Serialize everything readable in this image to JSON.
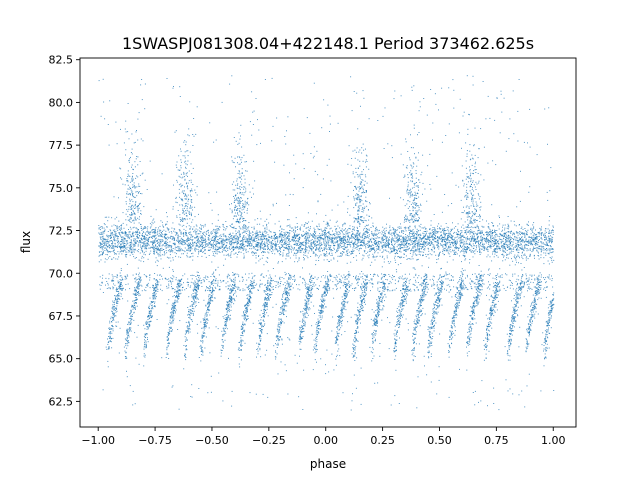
{
  "chart_data": {
    "type": "scatter",
    "title": "1SWASPJ081308.04+422148.1 Period 373462.625s",
    "xlabel": "phase",
    "ylabel": "flux",
    "xlim": [
      -1.08,
      1.1
    ],
    "ylim": [
      61.0,
      82.6
    ],
    "x_ticks": [
      -1.0,
      -0.75,
      -0.5,
      -0.25,
      0.0,
      0.25,
      0.5,
      0.75,
      1.0
    ],
    "x_tick_labels": [
      "−1.00",
      "−0.75",
      "−0.50",
      "−0.25",
      "0.00",
      "0.25",
      "0.50",
      "0.75",
      "1.00"
    ],
    "y_ticks": [
      62.5,
      65.0,
      67.5,
      70.0,
      72.5,
      75.0,
      77.5,
      80.0,
      82.5
    ],
    "y_tick_labels": [
      "62.5",
      "65.0",
      "67.5",
      "70.0",
      "72.5",
      "75.0",
      "77.5",
      "80.0",
      "82.5"
    ],
    "grid": false,
    "legend": "none",
    "point_color": "#1f77b4",
    "series": [
      {
        "points_summary": {
          "x_range": [
            -1.0,
            1.0
          ],
          "dense_band_flux": [
            70.8,
            73.0
          ],
          "band_center_flux": 71.9,
          "secondary_band_flux": [
            69.0,
            70.0
          ],
          "dip_streak_phases": [
            -0.96,
            -0.88,
            -0.8,
            -0.7,
            -0.62,
            -0.55,
            -0.46,
            -0.38,
            -0.3,
            -0.22,
            -0.12,
            -0.05,
            0.04,
            0.12,
            0.2,
            0.3,
            0.38,
            0.45,
            0.54,
            0.62,
            0.7,
            0.8,
            0.88,
            0.96
          ],
          "dip_streak_flux": [
            65.0,
            69.5
          ],
          "flare_phases": [
            -0.85,
            -0.62,
            -0.38,
            0.15,
            0.38,
            0.64
          ],
          "flare_flux_max": 81.5,
          "flux_min": 62.0,
          "flux_max": 81.6
        }
      }
    ]
  }
}
